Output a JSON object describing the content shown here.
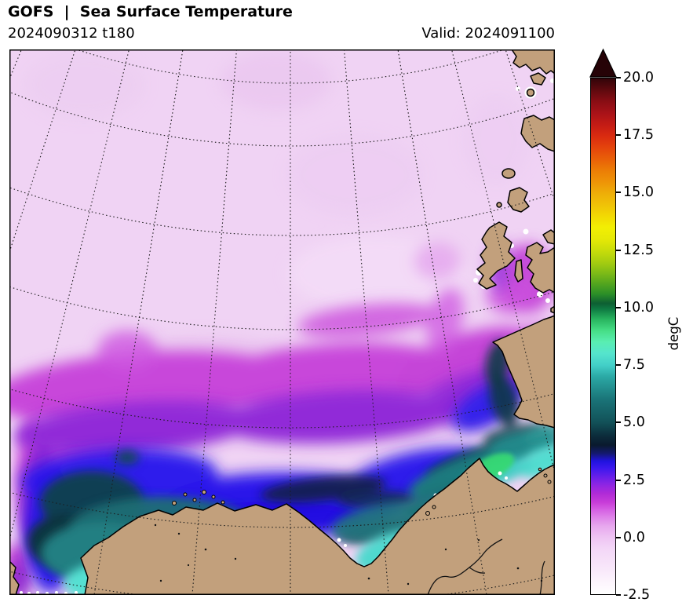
{
  "header": {
    "title": "GOFS  |  Sea Surface Temperature",
    "run": "2024090312 t180",
    "valid": "Valid: 2024091100"
  },
  "colorbar": {
    "label": "degC",
    "ticks": [
      "20.0",
      "17.5",
      "15.0",
      "12.5",
      "10.0",
      "7.5",
      "5.0",
      "2.5",
      "0.0",
      "-2.5"
    ],
    "min": -2.5,
    "max": 20.0,
    "extend": "max-arrow-top",
    "arrow_color": "#260307",
    "stops": [
      {
        "p": 0,
        "c": "#ffffff"
      },
      {
        "p": 2,
        "c": "#fdf6fd"
      },
      {
        "p": 5,
        "c": "#f8e7fa"
      },
      {
        "p": 8.9,
        "c": "#f3d6f7"
      },
      {
        "p": 11.1,
        "c": "#eec3f3"
      },
      {
        "p": 13.3,
        "c": "#e7a6ee"
      },
      {
        "p": 15.1,
        "c": "#dd7fe8"
      },
      {
        "p": 16.4,
        "c": "#d55fe3"
      },
      {
        "p": 17.8,
        "c": "#c83dd8"
      },
      {
        "p": 19.5,
        "c": "#b02bd7"
      },
      {
        "p": 21,
        "c": "#9326e2"
      },
      {
        "p": 22.6,
        "c": "#6c20e9"
      },
      {
        "p": 24.4,
        "c": "#3d18ee"
      },
      {
        "p": 25.8,
        "c": "#2113df"
      },
      {
        "p": 27.3,
        "c": "#14196f"
      },
      {
        "p": 28.9,
        "c": "#0a1a2e"
      },
      {
        "p": 30.7,
        "c": "#0c2c3b"
      },
      {
        "p": 33.3,
        "c": "#125158"
      },
      {
        "p": 37.8,
        "c": "#1a7478"
      },
      {
        "p": 42.2,
        "c": "#2ba9a5"
      },
      {
        "p": 44.4,
        "c": "#43cfc8"
      },
      {
        "p": 46.7,
        "c": "#55e5cd"
      },
      {
        "p": 48.9,
        "c": "#59eeb2"
      },
      {
        "p": 51.1,
        "c": "#46de86"
      },
      {
        "p": 53.3,
        "c": "#28b45f"
      },
      {
        "p": 55.3,
        "c": "#0f7a42"
      },
      {
        "p": 56.4,
        "c": "#0d5f33"
      },
      {
        "p": 58.2,
        "c": "#2b8f28"
      },
      {
        "p": 60,
        "c": "#4fa31f"
      },
      {
        "p": 62.2,
        "c": "#7cba17"
      },
      {
        "p": 64.4,
        "c": "#a6cd10"
      },
      {
        "p": 66.7,
        "c": "#c9dd0a"
      },
      {
        "p": 68.9,
        "c": "#e6e906"
      },
      {
        "p": 71.1,
        "c": "#f2ef03"
      },
      {
        "p": 73.3,
        "c": "#f2d903"
      },
      {
        "p": 75.6,
        "c": "#f0c107"
      },
      {
        "p": 77.8,
        "c": "#eead08"
      },
      {
        "p": 80,
        "c": "#ee9307"
      },
      {
        "p": 82.2,
        "c": "#ec7d06"
      },
      {
        "p": 84.4,
        "c": "#e95f08"
      },
      {
        "p": 86.7,
        "c": "#e4430c"
      },
      {
        "p": 88.9,
        "c": "#d92a10"
      },
      {
        "p": 91.1,
        "c": "#c31b15"
      },
      {
        "p": 93.3,
        "c": "#a81218"
      },
      {
        "p": 95.6,
        "c": "#880d14"
      },
      {
        "p": 97.8,
        "c": "#5e090e"
      },
      {
        "p": 100,
        "c": "#330409"
      }
    ]
  },
  "palette": {
    "land": "#c2a07c",
    "coastline": "#000000",
    "ocean_coldest": "#f0d3f4",
    "graticule": "#1c1c1c",
    "background": "#ffffff"
  },
  "chart_data": {
    "type": "heatmap",
    "title": "GOFS  |  Sea Surface Temperature",
    "model_run": "2024090312 t180",
    "valid_time": "Valid: 2024091100",
    "units": "degC",
    "projection": "north polar stereographic (Kara/Laptev sector, graticule dotted)",
    "colorbar": {
      "min": -2.5,
      "max": 20.0,
      "tick_interval": 2.5,
      "ticks": [
        20.0,
        17.5,
        15.0,
        12.5,
        10.0,
        7.5,
        5.0,
        2.5,
        0.0,
        -2.5
      ],
      "extend": "max"
    },
    "region_estimates": [
      {
        "region": "open Arctic Ocean, upper two-thirds of map",
        "sst_degC": -1.0
      },
      {
        "region": "pale tongue intruding from west mid-map",
        "sst_degC": -1.8
      },
      {
        "region": "magenta band across mid-lower basin",
        "sst_degC": 1.0
      },
      {
        "region": "purple transition band",
        "sst_degC": 2.0
      },
      {
        "region": "blue band offshore of shelf",
        "sst_degC": 3.0
      },
      {
        "region": "near-black band along shelf break",
        "sst_degC": 4.0
      },
      {
        "region": "dark-teal shelf waters",
        "sst_degC": 5.5
      },
      {
        "region": "cyan coastal waters",
        "sst_degC": 7.5
      },
      {
        "region": "green nearshore bays along Siberian coast",
        "sst_degC": 8.5
      },
      {
        "region": "water between NE archipelago islands",
        "sst_degC": 1.5
      },
      {
        "region": "white patches near islands and coast",
        "sst_degC": -2.5
      }
    ],
    "land_present": true
  }
}
